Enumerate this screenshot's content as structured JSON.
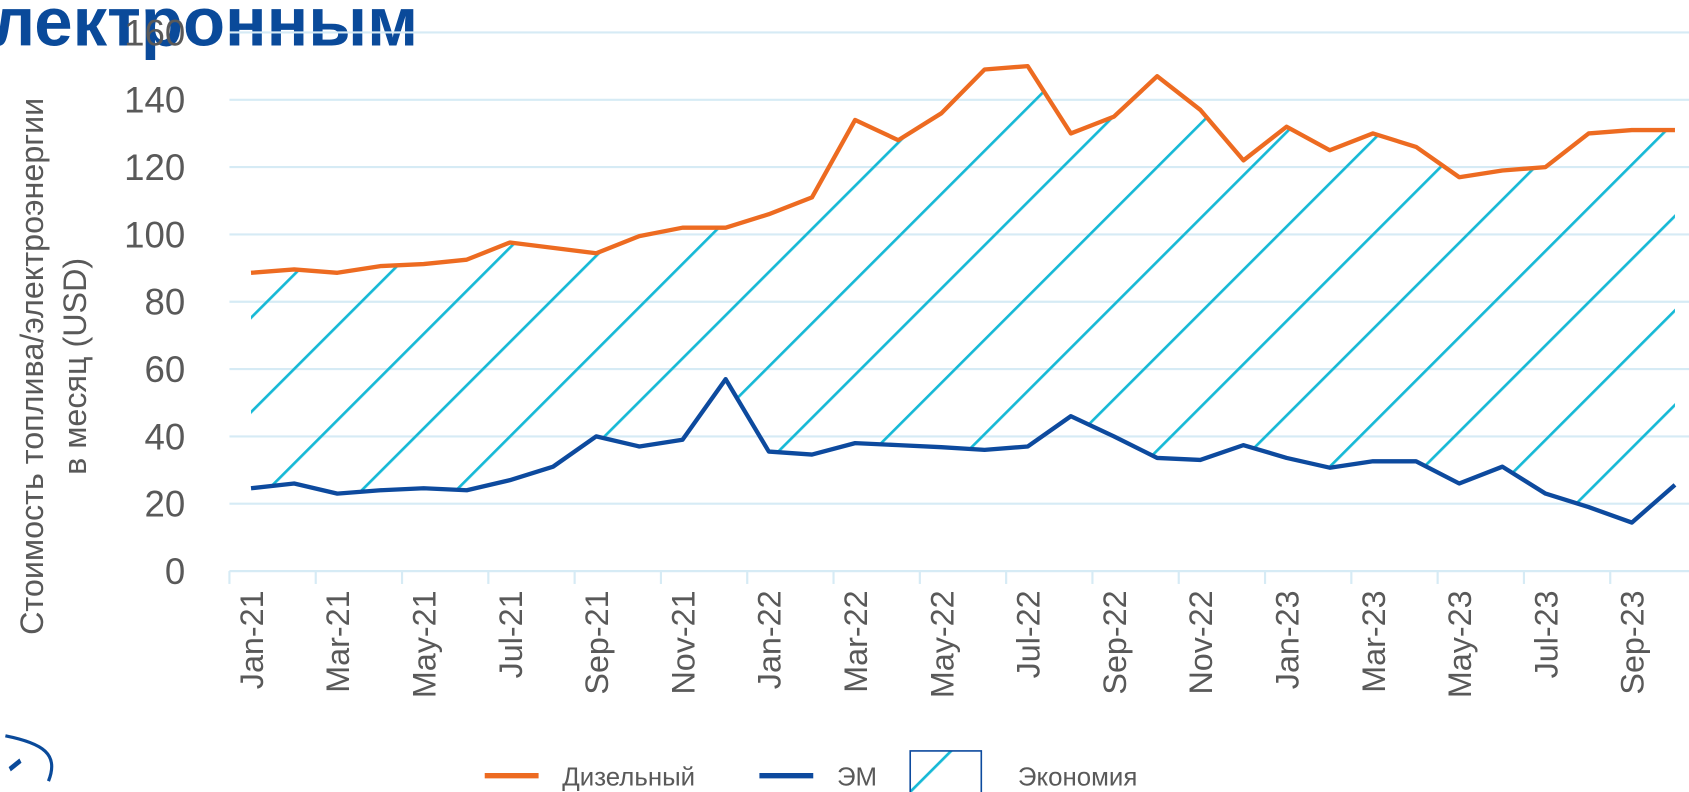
{
  "chart_data": {
    "type": "line",
    "title": "лектронным",
    "ylabel": [
      "Стоимость топлива/электроэнергии",
      "в месяц (USD)"
    ],
    "categories": [
      "Jan-21",
      null,
      "Mar-21",
      null,
      "May-21",
      null,
      "Jul-21",
      null,
      "Sep-21",
      null,
      "Nov-21",
      null,
      "Jan-22",
      null,
      "Mar-22",
      null,
      "May-22",
      null,
      "Jul-22",
      null,
      "Sep-22",
      null,
      "Nov-22",
      null,
      "Jan-23",
      null,
      "Mar-23",
      null,
      "May-23",
      null,
      "Jul-23",
      null,
      "Sep-23",
      null
    ],
    "series": [
      {
        "name": "Дизельный",
        "color": "#ed6b21",
        "values": [
          88.6,
          89.6,
          88.6,
          90.6,
          91.2,
          92.5,
          97.6,
          96,
          94.4,
          99.5,
          102,
          102,
          106,
          111,
          134,
          128,
          136,
          149,
          150,
          130,
          135,
          147,
          137,
          122,
          132,
          125,
          130,
          126,
          117,
          119,
          120,
          130,
          131,
          131
        ]
      },
      {
        "name": "ЭМ",
        "color": "#0d4a9e",
        "values": [
          24.6,
          26,
          23,
          24,
          24.6,
          24,
          27,
          31,
          40,
          37,
          39,
          57,
          35.5,
          34.6,
          38,
          37.4,
          36.8,
          36,
          37,
          46,
          40,
          33.6,
          33,
          37.4,
          33.6,
          30.7,
          32.6,
          32.6,
          26,
          31,
          23,
          19,
          14.4,
          25.6
        ]
      }
    ],
    "fill_between": {
      "name": "Экономия",
      "color": "#17b9d6"
    },
    "ylim": [
      0,
      160
    ],
    "yticks": [
      0,
      20,
      40,
      60,
      80,
      100,
      120,
      140,
      160
    ],
    "grid": true
  }
}
